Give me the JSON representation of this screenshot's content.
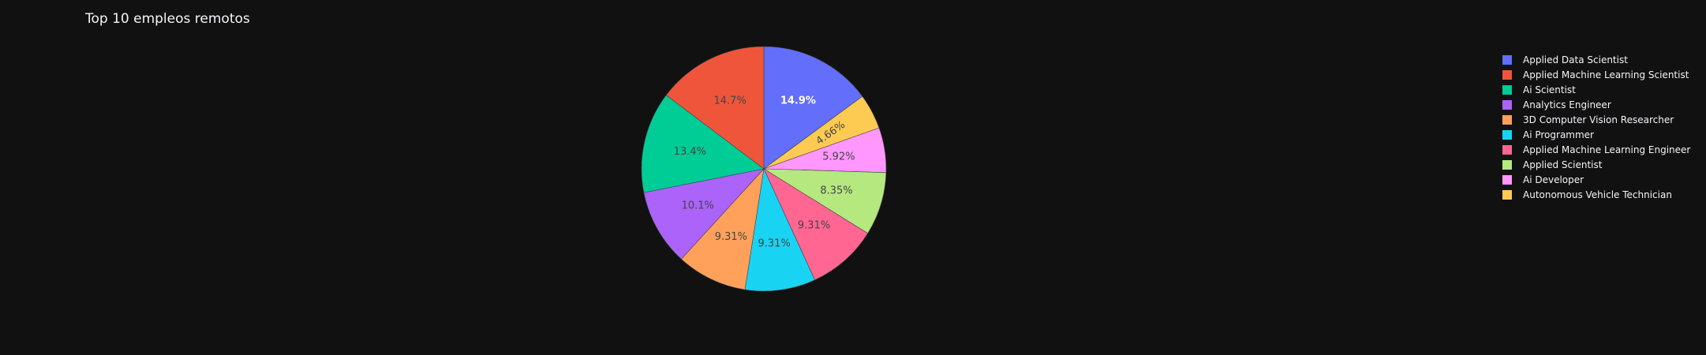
{
  "chart_data": {
    "type": "pie",
    "title": "Top 10 empleos remotos",
    "legend_position": "right",
    "direction": "clockwise",
    "start_angle_deg": 0,
    "slices": [
      {
        "label": "Applied Data Scientist",
        "value": 14.9,
        "display": "14.9%",
        "color": "#636efa",
        "text_color": "#ffffff",
        "bold": true,
        "rotate_label": false
      },
      {
        "label": "Autonomous Vehicle Technician",
        "value": 4.66,
        "display": "4.66%",
        "color": "#fecb52",
        "text_color": "#444444",
        "bold": false,
        "rotate_label": true
      },
      {
        "label": "Ai Developer",
        "value": 5.92,
        "display": "5.92%",
        "color": "#ff97ff",
        "text_color": "#444444",
        "bold": false,
        "rotate_label": false
      },
      {
        "label": "Applied Scientist",
        "value": 8.35,
        "display": "8.35%",
        "color": "#b6e880",
        "text_color": "#444444",
        "bold": false,
        "rotate_label": false
      },
      {
        "label": "Applied Machine Learning Engineer",
        "value": 9.31,
        "display": "9.31%",
        "color": "#ff6692",
        "text_color": "#444444",
        "bold": false,
        "rotate_label": false
      },
      {
        "label": "Ai Programmer",
        "value": 9.31,
        "display": "9.31%",
        "color": "#19d3f3",
        "text_color": "#444444",
        "bold": false,
        "rotate_label": false
      },
      {
        "label": "3D Computer Vision Researcher",
        "value": 9.31,
        "display": "9.31%",
        "color": "#ffa15a",
        "text_color": "#444444",
        "bold": false,
        "rotate_label": false
      },
      {
        "label": "Analytics Engineer",
        "value": 10.1,
        "display": "10.1%",
        "color": "#ab63fa",
        "text_color": "#444444",
        "bold": false,
        "rotate_label": false
      },
      {
        "label": "Ai Scientist",
        "value": 13.4,
        "display": "13.4%",
        "color": "#00cc96",
        "text_color": "#444444",
        "bold": false,
        "rotate_label": false
      },
      {
        "label": "Applied Machine Learning Scientist",
        "value": 14.7,
        "display": "14.7%",
        "color": "#ef553b",
        "text_color": "#444444",
        "bold": false,
        "rotate_label": false
      }
    ],
    "legend": [
      {
        "label": "Applied Data Scientist",
        "color": "#636efa"
      },
      {
        "label": "Applied Machine Learning Scientist",
        "color": "#ef553b"
      },
      {
        "label": "Ai Scientist",
        "color": "#00cc96"
      },
      {
        "label": "Analytics Engineer",
        "color": "#ab63fa"
      },
      {
        "label": "3D Computer Vision Researcher",
        "color": "#ffa15a"
      },
      {
        "label": "Ai Programmer",
        "color": "#19d3f3"
      },
      {
        "label": "Applied Machine Learning Engineer",
        "color": "#ff6692"
      },
      {
        "label": "Applied Scientist",
        "color": "#b6e880"
      },
      {
        "label": "Ai Developer",
        "color": "#ff97ff"
      },
      {
        "label": "Autonomous Vehicle Technician",
        "color": "#fecb52"
      }
    ]
  }
}
